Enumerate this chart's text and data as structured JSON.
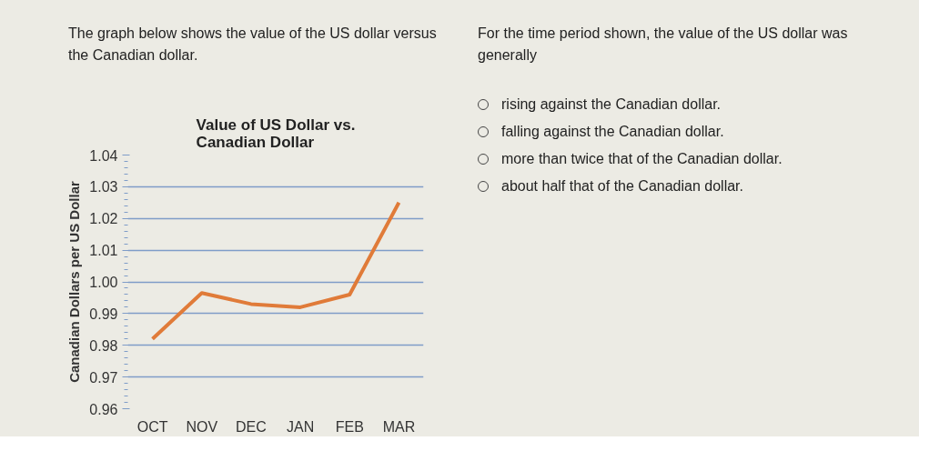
{
  "chart_data": {
    "type": "line",
    "title": "Value of US Dollar vs. Canadian Dollar",
    "ylabel": "Canadian Dollars per US Dollar",
    "categories": [
      "OCT",
      "NOV",
      "DEC",
      "JAN",
      "FEB",
      "MAR"
    ],
    "series": [
      {
        "color": "#e07b39",
        "values": [
          0.982,
          0.9965,
          0.993,
          0.992,
          0.996,
          1.025
        ]
      }
    ],
    "ylim": [
      0.96,
      1.04
    ],
    "yticks": [
      {
        "value": 0.96,
        "label": "0.96"
      },
      {
        "value": 0.97,
        "label": "0.97"
      },
      {
        "value": 0.98,
        "label": "0.98"
      },
      {
        "value": 0.99,
        "label": "0.99"
      },
      {
        "value": 1.0,
        "label": "1.00"
      },
      {
        "value": 1.01,
        "label": "1.01"
      },
      {
        "value": 1.02,
        "label": "1.02"
      },
      {
        "value": 1.03,
        "label": "1.03"
      },
      {
        "value": 1.04,
        "label": "1.04"
      }
    ],
    "grid": "y",
    "line_style": "solid",
    "annotations": [
      "The graph below shows the value of the US dollar versus the Canadian dollar.",
      "For the time period shown, the value of the US dollar was generally",
      "rising against the Canadian dollar.",
      "falling against the Canadian dollar.",
      "more than twice that of the Canadian dollar.",
      "about half that of the Canadian dollar."
    ]
  }
}
